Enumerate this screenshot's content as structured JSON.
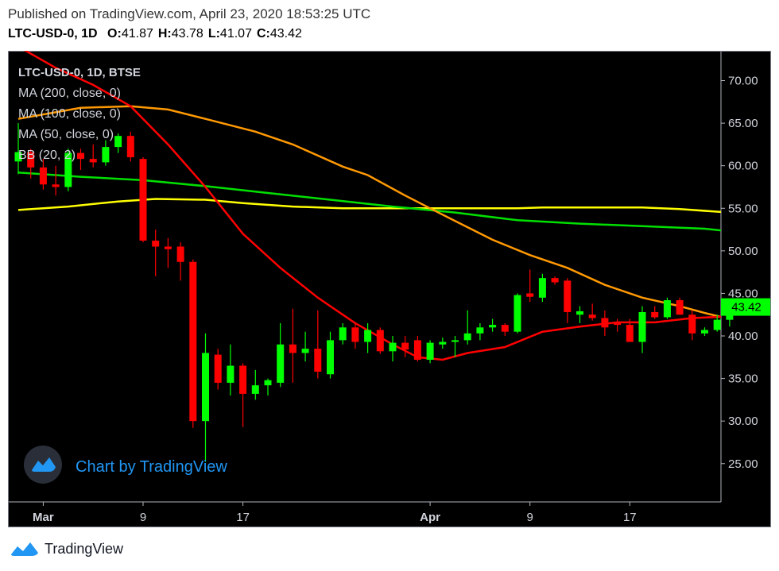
{
  "header": {
    "published": "Published on TradingView.com, April 23, 2020 18:53:25 UTC",
    "symbol_interval": "LTC-USD-0, 1D",
    "ohlc": [
      {
        "label": "O:",
        "value": "41.87"
      },
      {
        "label": "H:",
        "value": "43.78"
      },
      {
        "label": "L:",
        "value": "41.07"
      },
      {
        "label": "C:",
        "value": "43.42"
      }
    ]
  },
  "legend": {
    "title": "LTC-USD-0, 1D, BTSE",
    "items": [
      "MA (200, close, 0)",
      "MA (100, close, 0)",
      "MA (50, close, 0)",
      "BB (20, 2)"
    ]
  },
  "watermark": "Chart by TradingView",
  "footer": {
    "brand": "TradingView"
  },
  "price_label": "43.42",
  "colors": {
    "background": "#000000",
    "up": "#00ff00",
    "down": "#ff0000",
    "ma200": "#ffff00",
    "ma100": "#00e000",
    "ma50": "#ff9900",
    "bb": "#ff0000",
    "price_tag": "#00ff00",
    "axis_text": "#d1d4dc",
    "watermark": "#2196f3"
  },
  "chart_data": {
    "type": "candlestick",
    "yaxis": {
      "ticks": [
        25,
        30,
        35,
        40,
        45,
        50,
        55,
        60,
        65,
        70
      ],
      "ylim": [
        20.5,
        73.5
      ],
      "position": "right"
    },
    "xaxis": {
      "ticks": [
        {
          "label": "Mar",
          "index": 2,
          "bold": true
        },
        {
          "label": "9",
          "index": 10,
          "bold": false
        },
        {
          "label": "17",
          "index": 18,
          "bold": false
        },
        {
          "label": "Apr",
          "index": 33,
          "bold": true
        },
        {
          "label": "9",
          "index": 41,
          "bold": false
        },
        {
          "label": "17",
          "index": 49,
          "bold": false
        }
      ]
    },
    "candles": [
      {
        "o": 60.5,
        "h": 65.0,
        "l": 59.0,
        "c": 61.6
      },
      {
        "o": 61.6,
        "h": 62.0,
        "l": 58.5,
        "c": 59.8
      },
      {
        "o": 59.8,
        "h": 60.8,
        "l": 57.2,
        "c": 57.8
      },
      {
        "o": 57.8,
        "h": 60.0,
        "l": 56.5,
        "c": 57.5
      },
      {
        "o": 57.5,
        "h": 62.0,
        "l": 57.0,
        "c": 61.5
      },
      {
        "o": 61.5,
        "h": 62.0,
        "l": 59.5,
        "c": 60.8
      },
      {
        "o": 60.8,
        "h": 62.5,
        "l": 59.8,
        "c": 60.4
      },
      {
        "o": 60.4,
        "h": 63.0,
        "l": 60.0,
        "c": 62.2
      },
      {
        "o": 62.2,
        "h": 63.8,
        "l": 61.5,
        "c": 63.5
      },
      {
        "o": 63.5,
        "h": 64.0,
        "l": 60.5,
        "c": 61.0
      },
      {
        "o": 60.8,
        "h": 61.0,
        "l": 51.0,
        "c": 51.2
      },
      {
        "o": 51.2,
        "h": 52.5,
        "l": 47.0,
        "c": 50.5
      },
      {
        "o": 50.5,
        "h": 51.5,
        "l": 48.0,
        "c": 50.2
      },
      {
        "o": 50.5,
        "h": 51.0,
        "l": 46.5,
        "c": 48.7
      },
      {
        "o": 48.7,
        "h": 49.0,
        "l": 29.2,
        "c": 30.0
      },
      {
        "o": 30.0,
        "h": 40.3,
        "l": 25.2,
        "c": 38.0
      },
      {
        "o": 37.8,
        "h": 38.5,
        "l": 33.7,
        "c": 34.5
      },
      {
        "o": 34.5,
        "h": 39.0,
        "l": 33.0,
        "c": 36.5
      },
      {
        "o": 36.5,
        "h": 36.8,
        "l": 29.3,
        "c": 33.2
      },
      {
        "o": 33.2,
        "h": 36.0,
        "l": 32.5,
        "c": 34.2
      },
      {
        "o": 34.2,
        "h": 35.0,
        "l": 33.0,
        "c": 34.8
      },
      {
        "o": 34.5,
        "h": 41.5,
        "l": 34.0,
        "c": 39.0
      },
      {
        "o": 39.0,
        "h": 43.2,
        "l": 34.5,
        "c": 38.0
      },
      {
        "o": 38.0,
        "h": 40.5,
        "l": 37.0,
        "c": 38.5
      },
      {
        "o": 38.5,
        "h": 43.0,
        "l": 35.0,
        "c": 35.8
      },
      {
        "o": 35.5,
        "h": 40.5,
        "l": 35.0,
        "c": 39.5
      },
      {
        "o": 39.5,
        "h": 41.5,
        "l": 39.0,
        "c": 41.0
      },
      {
        "o": 41.0,
        "h": 41.5,
        "l": 38.5,
        "c": 39.3
      },
      {
        "o": 39.3,
        "h": 41.5,
        "l": 38.0,
        "c": 40.7
      },
      {
        "o": 40.7,
        "h": 41.0,
        "l": 37.9,
        "c": 38.2
      },
      {
        "o": 38.2,
        "h": 40.0,
        "l": 37.0,
        "c": 39.2
      },
      {
        "o": 39.2,
        "h": 40.0,
        "l": 37.5,
        "c": 38.4
      },
      {
        "o": 39.5,
        "h": 40.0,
        "l": 37.0,
        "c": 37.2
      },
      {
        "o": 37.2,
        "h": 39.5,
        "l": 36.8,
        "c": 39.2
      },
      {
        "o": 39.0,
        "h": 39.8,
        "l": 38.5,
        "c": 39.3
      },
      {
        "o": 39.3,
        "h": 40.0,
        "l": 37.5,
        "c": 39.5
      },
      {
        "o": 39.5,
        "h": 43.0,
        "l": 39.0,
        "c": 40.3
      },
      {
        "o": 40.3,
        "h": 41.5,
        "l": 39.5,
        "c": 41.0
      },
      {
        "o": 41.0,
        "h": 42.0,
        "l": 40.5,
        "c": 41.3
      },
      {
        "o": 41.3,
        "h": 41.5,
        "l": 40.0,
        "c": 40.5
      },
      {
        "o": 40.5,
        "h": 45.0,
        "l": 40.3,
        "c": 44.8
      },
      {
        "o": 45.0,
        "h": 47.8,
        "l": 44.0,
        "c": 44.6
      },
      {
        "o": 44.5,
        "h": 47.3,
        "l": 44.0,
        "c": 46.8
      },
      {
        "o": 46.8,
        "h": 47.0,
        "l": 46.0,
        "c": 46.3
      },
      {
        "o": 46.5,
        "h": 46.8,
        "l": 41.5,
        "c": 42.8
      },
      {
        "o": 42.5,
        "h": 43.5,
        "l": 41.5,
        "c": 42.9
      },
      {
        "o": 42.5,
        "h": 43.8,
        "l": 41.8,
        "c": 42.1
      },
      {
        "o": 42.1,
        "h": 43.0,
        "l": 40.0,
        "c": 41.0
      },
      {
        "o": 41.5,
        "h": 42.0,
        "l": 40.5,
        "c": 41.3
      },
      {
        "o": 41.3,
        "h": 42.0,
        "l": 39.3,
        "c": 39.3
      },
      {
        "o": 39.3,
        "h": 43.5,
        "l": 38.0,
        "c": 42.8
      },
      {
        "o": 42.8,
        "h": 43.5,
        "l": 42.0,
        "c": 42.2
      },
      {
        "o": 42.2,
        "h": 44.5,
        "l": 42.0,
        "c": 44.2
      },
      {
        "o": 44.2,
        "h": 44.5,
        "l": 42.5,
        "c": 42.5
      },
      {
        "o": 42.5,
        "h": 43.0,
        "l": 39.5,
        "c": 40.3
      },
      {
        "o": 40.3,
        "h": 41.0,
        "l": 40.0,
        "c": 40.7
      },
      {
        "o": 40.7,
        "h": 42.5,
        "l": 40.5,
        "c": 41.9
      },
      {
        "o": 41.9,
        "h": 43.8,
        "l": 41.1,
        "c": 43.4
      }
    ],
    "lines": [
      {
        "name": "MA (200, close, 0)",
        "color": "#ffff00",
        "points": [
          [
            0,
            54.8
          ],
          [
            4,
            55.2
          ],
          [
            8,
            55.8
          ],
          [
            11,
            56.1
          ],
          [
            15,
            56.0
          ],
          [
            18,
            55.6
          ],
          [
            22,
            55.2
          ],
          [
            26,
            55.0
          ],
          [
            30,
            55.0
          ],
          [
            35,
            55.0
          ],
          [
            40,
            55.0
          ],
          [
            42,
            55.1
          ],
          [
            50,
            55.1
          ],
          [
            53,
            54.9
          ],
          [
            57,
            54.5
          ]
        ]
      },
      {
        "name": "MA (100, close, 0)",
        "color": "#00e000",
        "points": [
          [
            0,
            59.2
          ],
          [
            5,
            58.7
          ],
          [
            10,
            58.3
          ],
          [
            15,
            57.6
          ],
          [
            20,
            56.8
          ],
          [
            25,
            56.0
          ],
          [
            30,
            55.2
          ],
          [
            35,
            54.5
          ],
          [
            40,
            53.6
          ],
          [
            45,
            53.2
          ],
          [
            50,
            52.9
          ],
          [
            55,
            52.6
          ],
          [
            57,
            52.3
          ]
        ]
      },
      {
        "name": "MA (50, close, 0)",
        "color": "#ff9900",
        "points": [
          [
            0,
            65.5
          ],
          [
            5,
            66.8
          ],
          [
            9,
            67.0
          ],
          [
            12,
            66.6
          ],
          [
            15,
            65.5
          ],
          [
            19,
            64.0
          ],
          [
            22,
            62.5
          ],
          [
            26,
            59.9
          ],
          [
            28,
            58.9
          ],
          [
            31,
            56.5
          ],
          [
            33,
            55.0
          ],
          [
            35,
            53.5
          ],
          [
            38,
            51.3
          ],
          [
            41,
            49.5
          ],
          [
            44,
            48.0
          ],
          [
            47,
            46.0
          ],
          [
            50,
            44.5
          ],
          [
            53,
            43.5
          ],
          [
            55,
            42.7
          ],
          [
            57,
            42.0
          ]
        ]
      },
      {
        "name": "BB (20, 2)",
        "color": "#ff0000",
        "points": [
          [
            0,
            74.0
          ],
          [
            3,
            71.5
          ],
          [
            6,
            69.5
          ],
          [
            9,
            67.0
          ],
          [
            12,
            62.5
          ],
          [
            15,
            57.5
          ],
          [
            18,
            52.0
          ],
          [
            21,
            48.0
          ],
          [
            24,
            44.5
          ],
          [
            27,
            41.5
          ],
          [
            30,
            39.0
          ],
          [
            32,
            37.5
          ],
          [
            34,
            37.2
          ],
          [
            36,
            38.0
          ],
          [
            39,
            38.7
          ],
          [
            42,
            40.5
          ],
          [
            45,
            41.1
          ],
          [
            48,
            41.6
          ],
          [
            51,
            41.6
          ],
          [
            54,
            42.1
          ],
          [
            57,
            42.3
          ]
        ]
      }
    ]
  }
}
